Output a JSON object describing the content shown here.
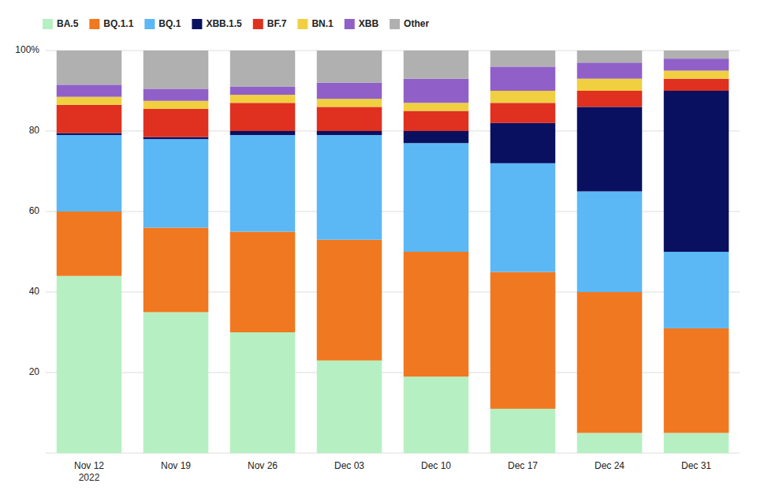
{
  "chart_data": {
    "type": "bar",
    "stacked": true,
    "grid": true,
    "legend": "top",
    "categories": [
      "Nov 12\n2022",
      "Nov 19",
      "Nov 26",
      "Dec 03",
      "Dec 10",
      "Dec 17",
      "Dec 24",
      "Dec 31"
    ],
    "series": [
      {
        "name": "BA.5",
        "color": "#b6f0c2",
        "values": [
          44,
          35,
          30,
          23,
          19,
          11,
          5,
          5
        ]
      },
      {
        "name": "BQ.1.1",
        "color": "#f07820",
        "values": [
          16,
          21,
          25,
          30,
          31,
          34,
          35,
          26
        ]
      },
      {
        "name": "BQ.1",
        "color": "#5bb8f5",
        "values": [
          19,
          22,
          24,
          26,
          27,
          27,
          25,
          19
        ]
      },
      {
        "name": "XBB.1.5",
        "color": "#0a1060",
        "values": [
          0.5,
          0.5,
          1,
          1,
          3,
          10,
          21,
          40
        ]
      },
      {
        "name": "BF.7",
        "color": "#e03020",
        "values": [
          7,
          7,
          7,
          6,
          5,
          5,
          4,
          3
        ]
      },
      {
        "name": "BN.1",
        "color": "#f0d040",
        "values": [
          2,
          2,
          2,
          2,
          2,
          3,
          3,
          2
        ]
      },
      {
        "name": "XBB",
        "color": "#9060c8",
        "values": [
          3,
          3,
          2,
          4,
          6,
          6,
          4,
          3
        ]
      },
      {
        "name": "Other",
        "color": "#b0b0b0",
        "values": [
          8.5,
          9.5,
          9,
          8,
          7,
          4,
          3,
          2
        ]
      }
    ],
    "ylim": [
      0,
      100
    ],
    "yticks": [
      {
        "value": 0,
        "label": null
      },
      20,
      40,
      60,
      80,
      {
        "value": 100,
        "label": "100%"
      }
    ]
  }
}
